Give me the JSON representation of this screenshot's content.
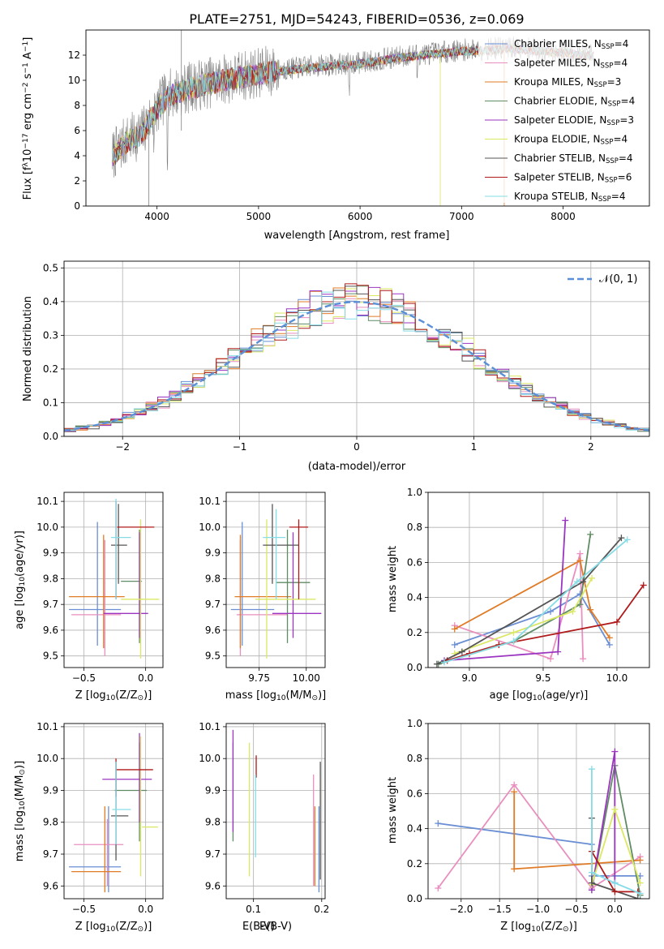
{
  "colors": {
    "Chabrier MILES": "#6a8ed4",
    "Salpeter MILES": "#e98fbf",
    "Kroupa MILES": "#e07b26",
    "Chabrier ELODIE": "#5f8c64",
    "Salpeter ELODIE": "#9b35c1",
    "Kroupa ELODIE": "#dbe864",
    "Chabrier STELIB": "#555555",
    "Salpeter STELIB": "#b01a1a",
    "Kroupa STELIB": "#86dce6",
    "gauss": "#5b8fd6",
    "spectrum_gray": "#808080"
  },
  "chart_data": [
    {
      "id": "spectrum",
      "type": "line",
      "title": "PLATE=2751, MJD=54243, FIBERID=0536, z=0.069",
      "xlabel": "wavelength [Angstrom, rest frame]",
      "ylabel_parts": [
        "Flux [f",
        "λ",
        "10",
        "−17",
        " erg cm",
        "−2",
        " s",
        "−1",
        " A",
        "−1",
        "]"
      ],
      "xlim": [
        3300,
        8850
      ],
      "ylim": [
        0,
        14
      ],
      "xticks": [
        4000,
        5000,
        6000,
        7000,
        8000
      ],
      "yticks": [
        0,
        2,
        4,
        6,
        8,
        10,
        12
      ],
      "legend_position": "right",
      "continuum": [
        [
          3560,
          4.0
        ],
        [
          3700,
          5.2
        ],
        [
          3850,
          5.8
        ],
        [
          3950,
          7.2
        ],
        [
          4100,
          8.8
        ],
        [
          4300,
          9.4
        ],
        [
          4600,
          10.0
        ],
        [
          5000,
          10.6
        ],
        [
          5500,
          11.1
        ],
        [
          6000,
          11.4
        ],
        [
          6500,
          12.0
        ],
        [
          7000,
          12.4
        ],
        [
          7500,
          12.6
        ],
        [
          8000,
          12.3
        ],
        [
          8300,
          12.0
        ]
      ],
      "series": [
        {
          "model": "Chabrier MILES",
          "legend": "Chabrier MILES, N",
          "n": "4"
        },
        {
          "model": "Salpeter MILES",
          "legend": "Salpeter MILES, N",
          "n": "4"
        },
        {
          "model": "Kroupa MILES",
          "legend": "Kroupa MILES, N",
          "n": "3"
        },
        {
          "model": "Chabrier ELODIE",
          "legend": "Chabrier ELODIE, N",
          "n": "4"
        },
        {
          "model": "Salpeter ELODIE",
          "legend": "Salpeter ELODIE, N",
          "n": "3"
        },
        {
          "model": "Kroupa ELODIE",
          "legend": "Kroupa ELODIE, N",
          "n": "4"
        },
        {
          "model": "Chabrier STELIB",
          "legend": "Chabrier STELIB, N",
          "n": "4"
        },
        {
          "model": "Salpeter STELIB",
          "legend": "Salpeter STELIB, N",
          "n": "6"
        },
        {
          "model": "Kroupa STELIB",
          "legend": "Kroupa STELIB, N",
          "n": "4"
        }
      ],
      "legend_sub": "SSP"
    },
    {
      "id": "residuals",
      "type": "histogram",
      "xlabel": "(data-model)/error",
      "ylabel": "Normed distribution",
      "xlim": [
        -2.5,
        2.5
      ],
      "ylim": [
        0,
        0.52
      ],
      "xticks": [
        -2,
        -1,
        0,
        1,
        2
      ],
      "yticks": [
        0.0,
        0.1,
        0.2,
        0.3,
        0.4,
        0.5
      ],
      "grid": true,
      "legend_label": "𝒩(0, 1)",
      "legend_position": "top-right",
      "bin_width": 0.1
    },
    {
      "id": "age_vs_Z",
      "type": "errorbar",
      "xlabel_parts": [
        "Z [log",
        "10",
        "(Z/Z",
        "⊙",
        ")]"
      ],
      "ylabel_parts": [
        "age  [log",
        "10",
        "(age/yr)]"
      ],
      "xlim": [
        -0.66,
        0.14
      ],
      "ylim": [
        9.455,
        10.135
      ],
      "xticks": [
        -0.5,
        0.0
      ],
      "yticks": [
        9.5,
        9.6,
        9.7,
        9.8,
        9.9,
        10.0,
        10.1
      ],
      "grid": true,
      "points": [
        {
          "model": "Chabrier MILES",
          "x": -0.39,
          "xlo": -0.62,
          "xhi": -0.2,
          "y": 9.68,
          "ylo": 9.54,
          "yhi": 10.02
        },
        {
          "model": "Salpeter MILES",
          "x": -0.33,
          "xlo": -0.6,
          "xhi": -0.2,
          "y": 9.66,
          "ylo": 9.5,
          "yhi": 9.95
        },
        {
          "model": "Kroupa MILES",
          "x": -0.34,
          "xlo": -0.62,
          "xhi": -0.17,
          "y": 9.73,
          "ylo": 9.53,
          "yhi": 9.97
        },
        {
          "model": "Chabrier ELODIE",
          "x": -0.05,
          "xlo": -0.2,
          "xhi": -0.03,
          "y": 9.79,
          "ylo": 9.55,
          "yhi": 9.99
        },
        {
          "model": "Salpeter ELODIE",
          "x": -0.05,
          "xlo": -0.34,
          "xhi": 0.02,
          "y": 9.665,
          "ylo": 9.57,
          "yhi": 9.98
        },
        {
          "model": "Kroupa ELODIE",
          "x": -0.04,
          "xlo": -0.2,
          "xhi": 0.11,
          "y": 9.72,
          "ylo": 9.49,
          "yhi": 10.03
        },
        {
          "model": "Chabrier STELIB",
          "x": -0.22,
          "xlo": -0.28,
          "xhi": -0.15,
          "y": 9.93,
          "ylo": 9.78,
          "yhi": 10.09
        },
        {
          "model": "Salpeter STELIB",
          "x": -0.24,
          "xlo": -0.23,
          "xhi": 0.07,
          "y": 10.0,
          "ylo": 9.72,
          "yhi": 10.1
        },
        {
          "model": "Kroupa STELIB",
          "x": -0.24,
          "xlo": -0.28,
          "xhi": -0.12,
          "y": 9.96,
          "ylo": 9.72,
          "yhi": 10.11
        }
      ]
    },
    {
      "id": "age_vs_mass",
      "type": "errorbar",
      "xlabel_parts": [
        "mass [log",
        "10",
        "(M/M",
        "⊙",
        ")]"
      ],
      "ylabel_parts": [],
      "xlim": [
        9.575,
        10.1
      ],
      "ylim": [
        9.455,
        10.135
      ],
      "xticks": [
        9.75,
        10.0
      ],
      "yticks": [
        9.5,
        9.6,
        9.7,
        9.8,
        9.9,
        10.0,
        10.1
      ],
      "grid": true,
      "points": [
        {
          "model": "Chabrier MILES",
          "x": 9.66,
          "xlo": 9.6,
          "xhi": 9.83,
          "y": 9.68,
          "ylo": 9.54,
          "yhi": 10.02
        },
        {
          "model": "Salpeter MILES",
          "x": 9.65,
          "xlo": 9.63,
          "xhi": 9.9,
          "y": 9.66,
          "ylo": 9.5,
          "yhi": 9.95
        },
        {
          "model": "Kroupa MILES",
          "x": 9.65,
          "xlo": 9.62,
          "xhi": 9.92,
          "y": 9.73,
          "ylo": 9.53,
          "yhi": 9.97
        },
        {
          "model": "Chabrier ELODIE",
          "x": 9.9,
          "xlo": 9.84,
          "xhi": 10.02,
          "y": 9.785,
          "ylo": 9.55,
          "yhi": 9.99
        },
        {
          "model": "Salpeter ELODIE",
          "x": 9.93,
          "xlo": 9.82,
          "xhi": 10.08,
          "y": 9.665,
          "ylo": 9.57,
          "yhi": 9.98
        },
        {
          "model": "Kroupa ELODIE",
          "x": 9.79,
          "xlo": 9.73,
          "xhi": 10.05,
          "y": 9.72,
          "ylo": 9.49,
          "yhi": 10.03
        },
        {
          "model": "Chabrier STELIB",
          "x": 9.82,
          "xlo": 9.77,
          "xhi": 9.96,
          "y": 9.93,
          "ylo": 9.78,
          "yhi": 10.09
        },
        {
          "model": "Salpeter STELIB",
          "x": 9.96,
          "xlo": 9.91,
          "xhi": 10.01,
          "y": 10.0,
          "ylo": 9.72,
          "yhi": 10.03
        },
        {
          "model": "Kroupa STELIB",
          "x": 9.84,
          "xlo": 9.77,
          "xhi": 9.89,
          "y": 9.96,
          "ylo": 9.72,
          "yhi": 10.07
        }
      ]
    },
    {
      "id": "weight_vs_age",
      "type": "line",
      "xlabel_parts": [
        "age  [log",
        "10",
        "(age/yr)]"
      ],
      "ylabel": "mass weight",
      "xlim": [
        8.72,
        10.22
      ],
      "ylim": [
        0.0,
        1.0
      ],
      "xticks": [
        9.0,
        9.5,
        10.0
      ],
      "yticks": [
        0.0,
        0.2,
        0.4,
        0.6,
        0.8,
        1.0
      ],
      "grid": true,
      "series": [
        {
          "model": "Chabrier MILES",
          "x": [
            8.9,
            9.55,
            9.75,
            9.95
          ],
          "y": [
            0.13,
            0.32,
            0.42,
            0.13
          ]
        },
        {
          "model": "Salpeter MILES",
          "x": [
            8.9,
            9.55,
            9.75,
            9.77
          ],
          "y": [
            0.24,
            0.05,
            0.65,
            0.05
          ]
        },
        {
          "model": "Kroupa MILES",
          "x": [
            8.9,
            9.75,
            9.82,
            9.95
          ],
          "y": [
            0.22,
            0.61,
            0.33,
            0.17
          ]
        },
        {
          "model": "Chabrier ELODIE",
          "x": [
            8.79,
            9.3,
            9.75,
            9.82
          ],
          "y": [
            0.02,
            0.15,
            0.36,
            0.76
          ]
        },
        {
          "model": "Salpeter ELODIE",
          "x": [
            8.83,
            9.6,
            9.65
          ],
          "y": [
            0.04,
            0.09,
            0.84
          ]
        },
        {
          "model": "Kroupa ELODIE",
          "x": [
            8.9,
            9.3,
            9.7,
            9.83
          ],
          "y": [
            0.08,
            0.2,
            0.32,
            0.51
          ]
        },
        {
          "model": "Chabrier STELIB",
          "x": [
            8.78,
            8.95,
            9.77,
            10.03
          ],
          "y": [
            0.02,
            0.09,
            0.49,
            0.74
          ]
        },
        {
          "model": "Salpeter STELIB",
          "x": [
            8.85,
            9.0,
            9.2,
            10.0,
            10.18
          ],
          "y": [
            0.04,
            0.08,
            0.13,
            0.26,
            0.47
          ]
        },
        {
          "model": "Kroupa STELIB",
          "x": [
            8.83,
            9.3,
            9.73,
            10.07
          ],
          "y": [
            0.03,
            0.15,
            0.49,
            0.73
          ]
        }
      ]
    },
    {
      "id": "mass_vs_Z",
      "type": "errorbar",
      "xlabel_parts": [
        "Z [log",
        "10",
        "(Z/Z",
        "⊙",
        ")]"
      ],
      "ylabel_parts": [
        "mass [log",
        "10",
        "(M/M",
        "⊙",
        ")]"
      ],
      "xlim": [
        -0.66,
        0.14
      ],
      "ylim": [
        9.56,
        10.11
      ],
      "xticks": [
        -0.5,
        0.0
      ],
      "yticks": [
        9.6,
        9.7,
        9.8,
        9.9,
        10.0,
        10.1
      ],
      "grid": true,
      "points": [
        {
          "model": "Chabrier MILES",
          "x": -0.3,
          "xlo": -0.62,
          "xhi": -0.2,
          "y": 9.66,
          "ylo": 9.58,
          "yhi": 9.85
        },
        {
          "model": "Salpeter MILES",
          "x": -0.31,
          "xlo": -0.58,
          "xhi": -0.18,
          "y": 9.73,
          "ylo": 9.6,
          "yhi": 9.81
        },
        {
          "model": "Kroupa MILES",
          "x": -0.33,
          "xlo": -0.6,
          "xhi": -0.2,
          "y": 9.645,
          "ylo": 9.58,
          "yhi": 9.85
        },
        {
          "model": "Chabrier ELODIE",
          "x": -0.05,
          "xlo": -0.25,
          "xhi": 0.01,
          "y": 9.9,
          "ylo": 9.74,
          "yhi": 10.05
        },
        {
          "model": "Salpeter ELODIE",
          "x": -0.05,
          "xlo": -0.35,
          "xhi": 0.05,
          "y": 9.935,
          "ylo": 9.8,
          "yhi": 10.08
        },
        {
          "model": "Kroupa ELODIE",
          "x": -0.04,
          "xlo": -0.03,
          "xhi": 0.1,
          "y": 9.785,
          "ylo": 9.63,
          "yhi": 10.07
        },
        {
          "model": "Chabrier STELIB",
          "x": -0.24,
          "xlo": -0.28,
          "xhi": -0.14,
          "y": 9.82,
          "ylo": 9.68,
          "yhi": 9.99
        },
        {
          "model": "Salpeter STELIB",
          "x": -0.24,
          "xlo": -0.24,
          "xhi": 0.06,
          "y": 9.965,
          "ylo": 9.88,
          "yhi": 10.0
        },
        {
          "model": "Kroupa STELIB",
          "x": -0.24,
          "xlo": -0.27,
          "xhi": -0.12,
          "y": 9.84,
          "ylo": 9.73,
          "yhi": 9.99
        }
      ]
    },
    {
      "id": "mass_vs_ebv",
      "type": "errorbar",
      "xlabel": "E(B-V)",
      "xlim": [
        0.06,
        0.205
      ],
      "ylim": [
        9.56,
        10.11
      ],
      "xticks": [
        0.1,
        0.2
      ],
      "yticks": [
        9.6,
        9.7,
        9.8,
        9.9,
        10.0,
        10.1
      ],
      "grid": true,
      "points": [
        {
          "model": "Chabrier MILES",
          "x": 0.196,
          "y": 9.66,
          "ylo": 9.58,
          "yhi": 9.85
        },
        {
          "model": "Salpeter MILES",
          "x": 0.188,
          "y": 9.73,
          "ylo": 9.6,
          "yhi": 9.95
        },
        {
          "model": "Kroupa MILES",
          "x": 0.19,
          "y": 9.645,
          "ylo": 9.6,
          "yhi": 9.85
        },
        {
          "model": "Chabrier ELODIE",
          "x": 0.07,
          "y": 9.9,
          "ylo": 9.74,
          "yhi": 10.05
        },
        {
          "model": "Salpeter ELODIE",
          "x": 0.07,
          "y": 9.935,
          "ylo": 9.77,
          "yhi": 10.09
        },
        {
          "model": "Kroupa ELODIE",
          "x": 0.094,
          "y": 9.785,
          "ylo": 9.63,
          "yhi": 10.05
        },
        {
          "model": "Chabrier STELIB",
          "x": 0.198,
          "y": 9.82,
          "ylo": 9.62,
          "yhi": 9.99
        },
        {
          "model": "Salpeter STELIB",
          "x": 0.104,
          "y": 9.965,
          "ylo": 9.94,
          "yhi": 10.01
        },
        {
          "model": "Kroupa STELIB",
          "x": 0.103,
          "y": 9.84,
          "ylo": 9.69,
          "yhi": 9.95
        }
      ]
    },
    {
      "id": "weight_vs_Z",
      "type": "line",
      "xlabel_parts": [
        "Z [log",
        "10",
        "(Z/Z",
        "⊙",
        ")]"
      ],
      "ylabel": "mass weight",
      "xlim": [
        -2.43,
        0.45
      ],
      "ylim": [
        0.0,
        1.0
      ],
      "xticks": [
        -2.0,
        -1.5,
        -1.0,
        -0.5,
        0.0
      ],
      "yticks": [
        0.0,
        0.2,
        0.4,
        0.6,
        0.8,
        1.0
      ],
      "grid": true,
      "series": [
        {
          "model": "Chabrier MILES",
          "x": [
            -2.3,
            -0.3,
            -0.3,
            0.33
          ],
          "y": [
            0.43,
            0.31,
            0.13,
            0.13
          ]
        },
        {
          "model": "Salpeter MILES",
          "x": [
            -2.3,
            -1.31,
            -0.3,
            0.33
          ],
          "y": [
            0.06,
            0.65,
            0.06,
            0.24
          ]
        },
        {
          "model": "Kroupa MILES",
          "x": [
            -1.31,
            -1.31,
            0.33
          ],
          "y": [
            0.61,
            0.17,
            0.22
          ]
        },
        {
          "model": "Chabrier ELODIE",
          "x": [
            -0.3,
            0.0,
            0.33
          ],
          "y": [
            0.05,
            0.76,
            0.02
          ]
        },
        {
          "model": "Salpeter ELODIE",
          "x": [
            -0.3,
            0.0,
            0.0
          ],
          "y": [
            0.05,
            0.84,
            0.09
          ]
        },
        {
          "model": "Kroupa ELODIE",
          "x": [
            -0.3,
            0.0,
            0.33
          ],
          "y": [
            0.08,
            0.51,
            0.09
          ]
        },
        {
          "model": "Chabrier STELIB",
          "x": [
            -0.3,
            -0.3,
            0.3
          ],
          "y": [
            0.46,
            0.09,
            0.0
          ]
        },
        {
          "model": "Salpeter STELIB",
          "x": [
            -0.3,
            0.0,
            0.3
          ],
          "y": [
            0.27,
            0.04,
            0.04
          ]
        },
        {
          "model": "Kroupa STELIB",
          "x": [
            -0.3,
            -0.3,
            0.0,
            0.33
          ],
          "y": [
            0.74,
            0.15,
            0.09,
            0.03
          ]
        }
      ]
    }
  ]
}
